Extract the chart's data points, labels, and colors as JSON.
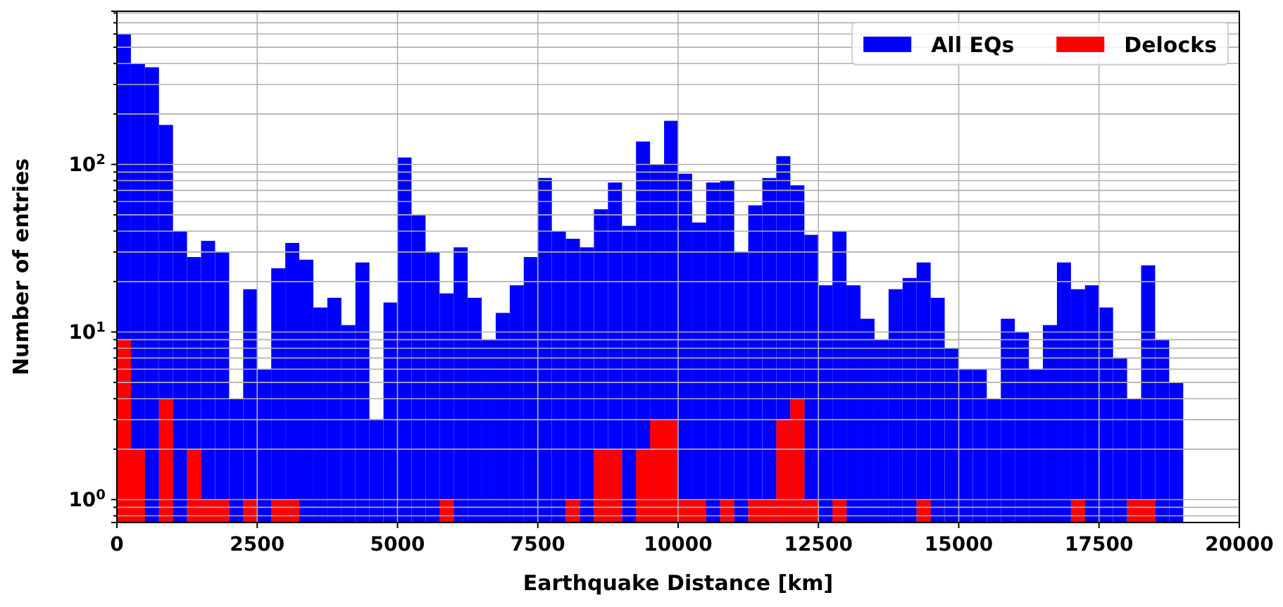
{
  "chart_data": {
    "type": "histogram",
    "xlabel": "Earthquake Distance [km]",
    "ylabel": "Number of entries",
    "log": "y",
    "grid": true,
    "legend": "top right",
    "bins": [
      0,
      250,
      500,
      750,
      1000,
      1250,
      1500,
      1750,
      2000,
      2250,
      2500,
      2750,
      3000,
      3250,
      3500,
      3750,
      4000,
      4250,
      4500,
      4750,
      5000,
      5250,
      5500,
      5750,
      6000,
      6250,
      6500,
      6750,
      7000,
      7250,
      7500,
      7750,
      8000,
      8250,
      8500,
      8750,
      9000,
      9250,
      9500,
      9750,
      10000,
      10250,
      10500,
      10750,
      11000,
      11250,
      11500,
      11750,
      12000,
      12250,
      12500,
      12750,
      13000,
      13250,
      13500,
      13750,
      14000,
      14250,
      14500,
      14750,
      15000,
      15250,
      15500,
      15750,
      16000,
      16250,
      16500,
      16750,
      17000,
      17250,
      17500,
      17750,
      18000,
      18250,
      18500,
      18750,
      19000
    ],
    "series": [
      {
        "name": "All EQs",
        "color": "#0000ff",
        "values": [
          600,
          400,
          380,
          172,
          40,
          28,
          35,
          30,
          4,
          18,
          6,
          24,
          34,
          27,
          14,
          16,
          11,
          26,
          3,
          15,
          110,
          50,
          30,
          17,
          32,
          16,
          9,
          13,
          19,
          28,
          83,
          40,
          36,
          32,
          54,
          78,
          43,
          137,
          100,
          182,
          88,
          45,
          78,
          80,
          30,
          57,
          83,
          112,
          75,
          38,
          19,
          40,
          19,
          12,
          9,
          18,
          21,
          26,
          16,
          8,
          6,
          6,
          4,
          12,
          10,
          6,
          11,
          26,
          18,
          19,
          14,
          7,
          4,
          25,
          9,
          5
        ]
      },
      {
        "name": "Delocks",
        "color": "#ff0000",
        "values": [
          9,
          2,
          null,
          4,
          null,
          2,
          1,
          1,
          null,
          1,
          null,
          1,
          1,
          null,
          null,
          null,
          null,
          null,
          null,
          null,
          null,
          null,
          null,
          1,
          null,
          null,
          null,
          null,
          null,
          null,
          null,
          null,
          1,
          null,
          2,
          2,
          null,
          2,
          3,
          3,
          1,
          1,
          null,
          1,
          null,
          1,
          1,
          3,
          4,
          1,
          null,
          1,
          null,
          null,
          null,
          null,
          null,
          1,
          null,
          null,
          null,
          null,
          null,
          null,
          null,
          null,
          null,
          null,
          1,
          null,
          null,
          null,
          1,
          1,
          null,
          null
        ]
      }
    ],
    "xlim": [
      0,
      20000
    ],
    "xticks": [
      0,
      2500,
      5000,
      7500,
      10000,
      12500,
      15000,
      17500,
      20000
    ],
    "ylim": [
      0.73,
      820
    ],
    "yticks": [
      {
        "value": 0.8,
        "label": null
      },
      {
        "value": 0.9,
        "label": null
      },
      {
        "value": 1,
        "label": "10$^{0}$"
      },
      {
        "value": 2,
        "label": null
      },
      {
        "value": 3,
        "label": null
      },
      {
        "value": 4,
        "label": null
      },
      {
        "value": 5,
        "label": null
      },
      {
        "value": 6,
        "label": null
      },
      {
        "value": 7,
        "label": null
      },
      {
        "value": 8,
        "label": null
      },
      {
        "value": 9,
        "label": null
      },
      {
        "value": 10,
        "label": "10$^{1}$"
      },
      {
        "value": 20,
        "label": null
      },
      {
        "value": 30,
        "label": null
      },
      {
        "value": 40,
        "label": null
      },
      {
        "value": 50,
        "label": null
      },
      {
        "value": 60,
        "label": null
      },
      {
        "value": 70,
        "label": null
      },
      {
        "value": 80,
        "label": null
      },
      {
        "value": 90,
        "label": null
      },
      {
        "value": 100,
        "label": "10$^{2}$"
      },
      {
        "value": 200,
        "label": null
      },
      {
        "value": 300,
        "label": null
      },
      {
        "value": 400,
        "label": null
      },
      {
        "value": 500,
        "label": null
      },
      {
        "value": 600,
        "label": null
      },
      {
        "value": 700,
        "label": null
      },
      {
        "value": 800,
        "label": null
      }
    ]
  }
}
